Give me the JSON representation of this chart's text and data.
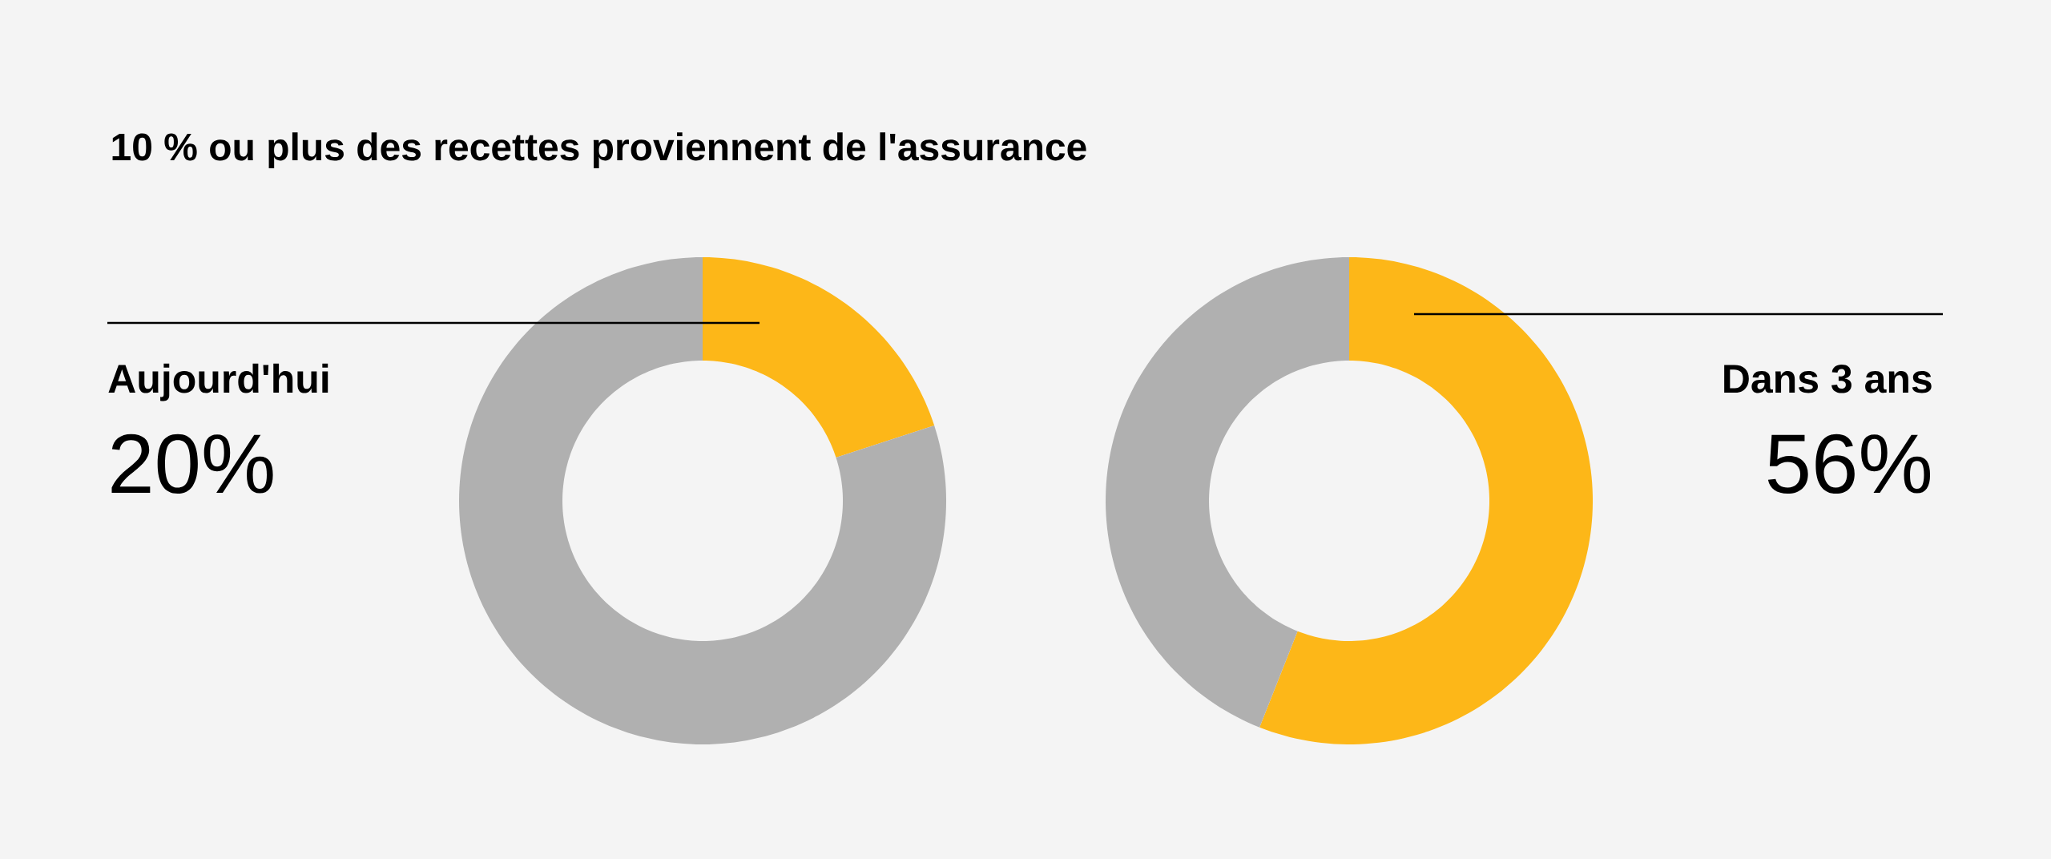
{
  "chart_data": [
    {
      "type": "donut",
      "title": "10 % ou plus des recettes proviennent de l'assurance",
      "categories": [
        null,
        null
      ],
      "values": [
        20,
        80
      ],
      "colors": [
        "#fdb718",
        "#b0b0b0"
      ],
      "annotations": [
        "Aujourd'hui",
        "20%"
      ]
    },
    {
      "type": "donut",
      "categories": [
        null,
        null
      ],
      "values": [
        56,
        44
      ],
      "colors": [
        "#fdb718",
        "#b0b0b0"
      ],
      "annotations": [
        "Dans 3 ans",
        "56%"
      ]
    }
  ]
}
